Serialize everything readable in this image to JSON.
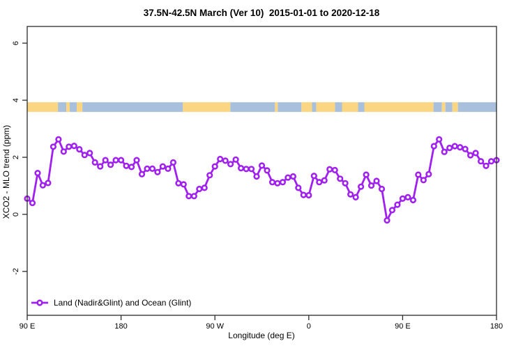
{
  "title": "37.5N-42.5N March (Ver 10)  2015-01-01 to 2020-12-18",
  "colors": {
    "series_purple": "#A020F0",
    "marker_fill": "#ffffff",
    "land_strip": "#FAD683",
    "ocean_strip": "#A9C0DC",
    "axis": "#2b2b2b",
    "background": "#ffffff"
  },
  "chart_data": {
    "type": "line",
    "title": "37.5N-42.5N March (Ver 10)  2015-01-01 to 2020-12-18",
    "xlabel": "Longitude (deg E)",
    "ylabel": "XCO2 - MLO trend (ppm)",
    "x_axis_note": "longitude wraps eastward from 90E through 180, 90W, 0, 90E to 180 (450 deg span)",
    "xlim_deg_offset": [
      0,
      450
    ],
    "ylim": [
      -3.5,
      6.6
    ],
    "grid": false,
    "legend_position": "bottom-left inside plot",
    "x_ticks": [
      {
        "deg": 0,
        "label": "90 E"
      },
      {
        "deg": 90,
        "label": "180"
      },
      {
        "deg": 180,
        "label": "90 W"
      },
      {
        "deg": 270,
        "label": "0"
      },
      {
        "deg": 360,
        "label": "90 E"
      },
      {
        "deg": 450,
        "label": "180"
      }
    ],
    "y_ticks": [
      {
        "value": -2,
        "label": "-2"
      },
      {
        "value": 0,
        "label": "0"
      },
      {
        "value": 2,
        "label": "2"
      },
      {
        "value": 4,
        "label": "4"
      },
      {
        "value": 6,
        "label": "6"
      }
    ],
    "series": [
      {
        "name": "Land (Nadir&Glint) and Ocean (Glint)",
        "marker": "open-circle",
        "x_deg_offset": [
          0,
          5,
          10,
          15,
          20,
          25,
          30,
          35,
          40,
          45,
          50,
          55,
          60,
          65,
          70,
          75,
          80,
          85,
          90,
          95,
          100,
          105,
          110,
          115,
          120,
          125,
          130,
          135,
          140,
          145,
          150,
          155,
          160,
          165,
          170,
          175,
          180,
          185,
          190,
          195,
          200,
          205,
          210,
          215,
          220,
          225,
          230,
          235,
          240,
          245,
          250,
          255,
          260,
          265,
          270,
          275,
          280,
          285,
          290,
          295,
          300,
          305,
          310,
          315,
          320,
          325,
          330,
          335,
          340,
          345,
          350,
          355,
          360,
          365,
          370,
          375,
          380,
          385,
          390,
          395,
          400,
          405,
          410,
          415,
          420,
          425,
          430,
          435,
          440,
          445,
          450
        ],
        "values": [
          0.55,
          0.4,
          1.45,
          1.02,
          1.1,
          2.37,
          2.63,
          2.2,
          2.37,
          2.4,
          2.28,
          2.08,
          2.15,
          1.82,
          1.68,
          1.9,
          1.74,
          1.9,
          1.9,
          1.7,
          1.66,
          1.9,
          1.41,
          1.6,
          1.6,
          1.48,
          1.68,
          1.6,
          1.82,
          1.09,
          1.05,
          0.64,
          0.64,
          0.89,
          0.93,
          1.37,
          1.68,
          1.94,
          1.88,
          1.76,
          1.92,
          1.62,
          1.59,
          1.59,
          1.33,
          1.71,
          1.54,
          1.13,
          1.09,
          1.13,
          1.29,
          1.33,
          0.93,
          0.68,
          0.67,
          1.35,
          1.13,
          1.19,
          1.58,
          1.55,
          1.25,
          1.09,
          0.7,
          0.6,
          0.97,
          1.39,
          1.01,
          1.17,
          0.89,
          -0.21,
          0.15,
          0.34,
          0.55,
          0.6,
          0.5,
          1.39,
          1.2,
          1.41,
          2.39,
          2.63,
          2.19,
          2.33,
          2.39,
          2.35,
          2.29,
          2.07,
          2.15,
          1.86,
          1.7,
          1.86,
          1.9
        ]
      }
    ],
    "map_strip": {
      "description": "land/ocean latitude band drawn across the plot near y=3.6-3.9",
      "y_top_value": 3.93,
      "y_bottom_value": 3.59,
      "segments": [
        {
          "from": 0,
          "to": 29.5,
          "type": "land"
        },
        {
          "from": 29.5,
          "to": 37.5,
          "type": "ocean"
        },
        {
          "from": 37.5,
          "to": 40.8,
          "type": "land"
        },
        {
          "from": 40.8,
          "to": 47.5,
          "type": "ocean"
        },
        {
          "from": 47.5,
          "to": 52.9,
          "type": "land"
        },
        {
          "from": 52.9,
          "to": 149.3,
          "type": "ocean"
        },
        {
          "from": 149.3,
          "to": 194.8,
          "type": "land"
        },
        {
          "from": 194.8,
          "to": 237.6,
          "type": "ocean"
        },
        {
          "from": 237.6,
          "to": 240.3,
          "type": "land"
        },
        {
          "from": 240.3,
          "to": 263.0,
          "type": "ocean"
        },
        {
          "from": 263.0,
          "to": 273.1,
          "type": "land"
        },
        {
          "from": 273.1,
          "to": 277.1,
          "type": "ocean"
        },
        {
          "from": 277.1,
          "to": 295.2,
          "type": "land"
        },
        {
          "from": 295.2,
          "to": 301.9,
          "type": "ocean"
        },
        {
          "from": 301.9,
          "to": 317.3,
          "type": "land"
        },
        {
          "from": 317.3,
          "to": 323.3,
          "type": "ocean"
        },
        {
          "from": 323.3,
          "to": 389.6,
          "type": "land"
        },
        {
          "from": 389.6,
          "to": 397.6,
          "type": "ocean"
        },
        {
          "from": 397.6,
          "to": 401.0,
          "type": "land"
        },
        {
          "from": 401.0,
          "to": 407.7,
          "type": "ocean"
        },
        {
          "from": 407.7,
          "to": 413.0,
          "type": "land"
        },
        {
          "from": 413.0,
          "to": 450.0,
          "type": "ocean"
        }
      ]
    }
  },
  "legend": {
    "label": "Land (Nadir&Glint) and Ocean (Glint)"
  }
}
